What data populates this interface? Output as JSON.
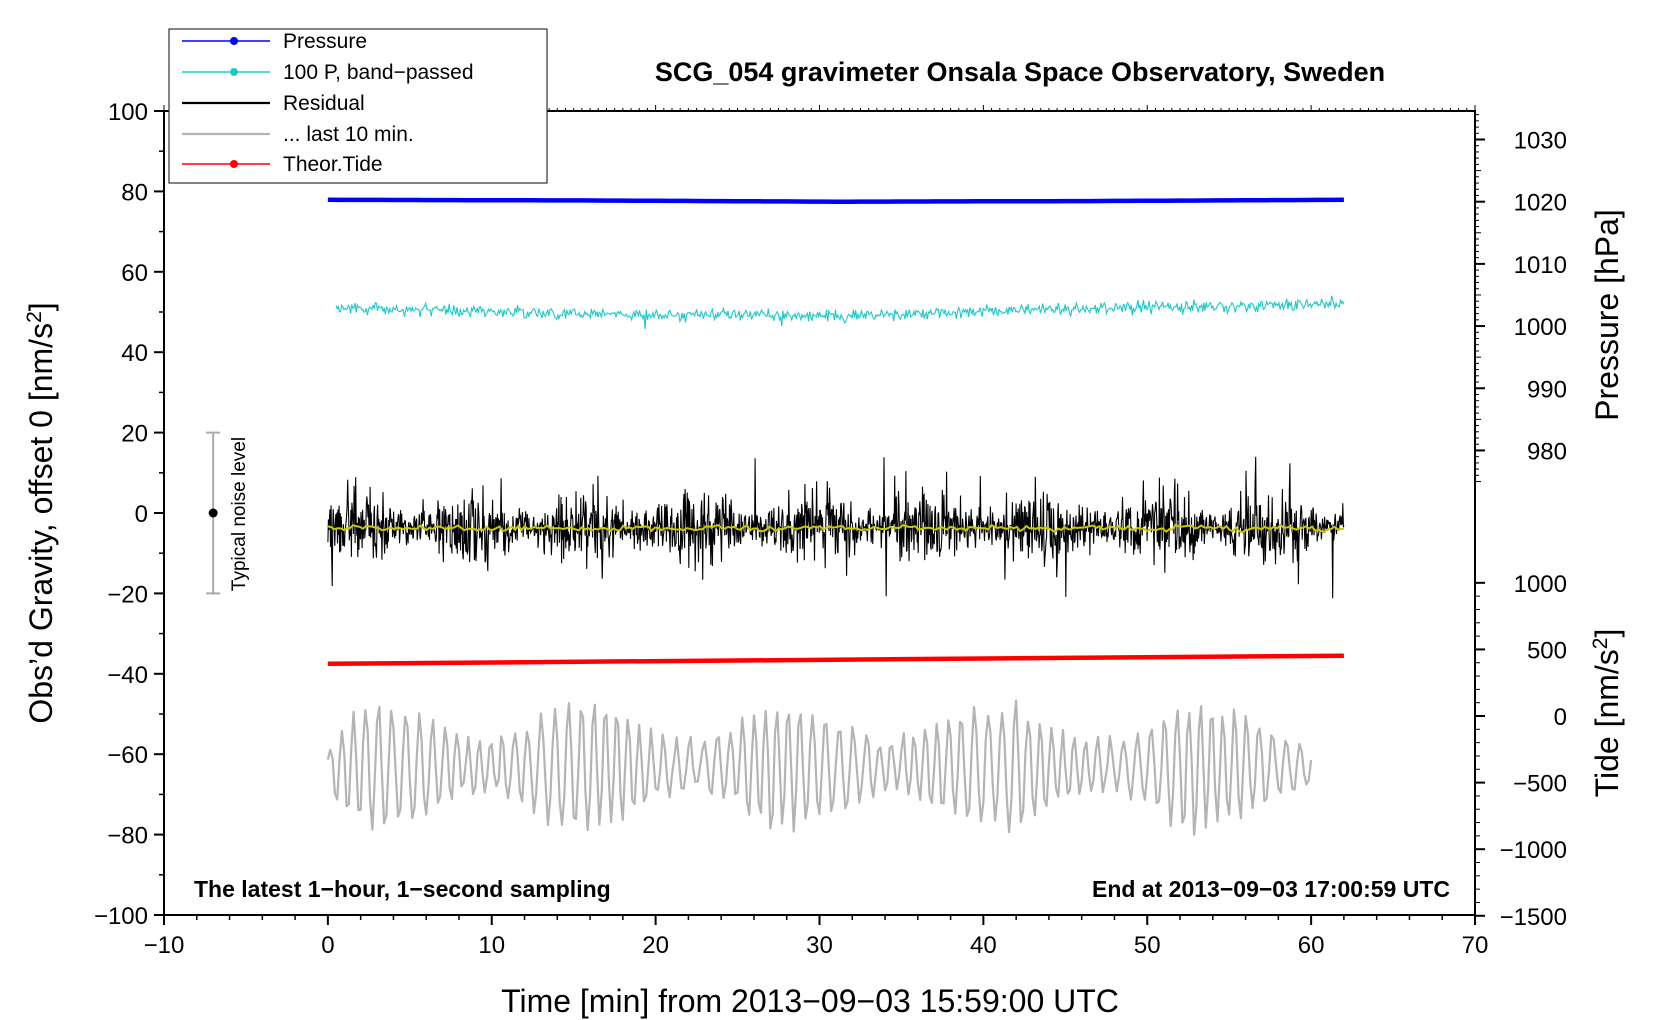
{
  "chart_data": {
    "type": "line",
    "title": "SCG_054 gravimeter Onsala Space Observatory, Sweden",
    "xlabel": "Time [min] from 2013−09−03 15:59:00 UTC",
    "ylabel": "Obs’d Gravity, offset 0 [nm/s",
    "ylabel_sup": "2",
    "ylabel_end": "]",
    "xlim": [
      -10,
      70
    ],
    "ylim": [
      -100,
      100
    ],
    "x_ticks": [
      -10,
      0,
      10,
      20,
      30,
      40,
      50,
      60,
      70
    ],
    "x_tick_labels": [
      "−10",
      "0",
      "10",
      "20",
      "30",
      "40",
      "50",
      "60",
      "70"
    ],
    "y_ticks": [
      -100,
      -80,
      -60,
      -40,
      -20,
      0,
      20,
      40,
      60,
      80,
      100
    ],
    "y_tick_labels": [
      "−100",
      "−80",
      "−60",
      "−40",
      "−20",
      "0",
      "20",
      "40",
      "60",
      "80",
      "100"
    ],
    "pressure_axis": {
      "label": "Pressure [hPa]",
      "ticks": [
        980,
        990,
        1000,
        1010,
        1020,
        1030
      ],
      "tick_labels": [
        "980",
        "990",
        "1000",
        "1010",
        "1020",
        "1030"
      ],
      "gravity_at_1000": 46.5,
      "gravity_per_hpa": 1.547
    },
    "tide_axis": {
      "label": "Tide [nm/s",
      "label_sup": "2",
      "label_end": "]",
      "ticks": [
        -1500,
        -1000,
        -500,
        0,
        500,
        1000
      ],
      "tick_labels": [
        "−1500",
        "−1000",
        "−500",
        "0",
        "500",
        "1000"
      ],
      "gravity_at_0": -50.5,
      "gravity_per_unit": 0.03313
    },
    "series": [
      {
        "name": "Pressure",
        "color": "#0000ff",
        "x_range": [
          0,
          62
        ],
        "pressure_hpa": [
          1020.3,
          1020.2,
          1020.0,
          1020.1,
          1020.3
        ],
        "gravity_approx": 77.8
      },
      {
        "name": "100 P, band−passed",
        "color": "#20c8c8",
        "x_range": [
          0,
          62
        ],
        "mean_gravity": [
          51,
          49.5,
          49,
          51,
          52
        ],
        "noise_amplitude": 1.2
      },
      {
        "name": "Residual",
        "color": "#000000",
        "x_range": [
          0,
          62
        ],
        "mean_gravity": -3.5,
        "noise_amplitude": 6,
        "spike_range": [
          -24,
          15
        ]
      },
      {
        "name": "... last 10 min.",
        "color": "#b4b4b4",
        "x_range": [
          0,
          60
        ],
        "mean_gravity": -63,
        "amplitude": 8,
        "range": [
          -80,
          -45
        ]
      },
      {
        "name": "Theor.Tide",
        "color": "#ff0000",
        "x_range": [
          0,
          62
        ],
        "gravity": [
          -37.5,
          -35.5
        ],
        "tide_nm_s2": [
          390,
          450
        ]
      }
    ],
    "smoothed_residual": {
      "color": "#c8c800",
      "mean_gravity": -3.8
    },
    "noise_bar": {
      "label": "Typical noise level",
      "x": -7,
      "center": 0,
      "half_range": 20
    },
    "annotations": {
      "left": "The latest 1−hour, 1−second sampling",
      "right": "End at 2013−09−03 17:00:59 UTC"
    },
    "legend": [
      "Pressure",
      "100 P, band−passed",
      "Residual",
      "... last 10 min.",
      "Theor.Tide"
    ],
    "legend_position": "top-left",
    "grid": false
  }
}
